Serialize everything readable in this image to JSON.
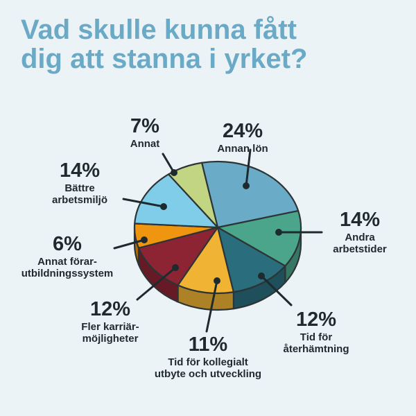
{
  "title_lines": [
    "Vad skulle kunna fått",
    "dig att stanna i yrket?"
  ],
  "chart_data": {
    "type": "pie",
    "title": "Vad skulle kunna fått dig att stanna i yrket?",
    "slices": [
      {
        "pct_label": "24%",
        "value": 24,
        "label_lines": [
          "Annan lön"
        ],
        "color": "#6aabc8"
      },
      {
        "pct_label": "14%",
        "value": 14,
        "label_lines": [
          "Andra",
          "arbetstider"
        ],
        "color": "#4aa58a"
      },
      {
        "pct_label": "12%",
        "value": 12,
        "label_lines": [
          "Tid för",
          "återhämtning"
        ],
        "color": "#2a6e7e"
      },
      {
        "pct_label": "11%",
        "value": 11,
        "label_lines": [
          "Tid för kollegialt",
          "utbyte och utveckling"
        ],
        "color": "#f0b333"
      },
      {
        "pct_label": "12%",
        "value": 12,
        "label_lines": [
          "Fler karriär-",
          "möjligheter"
        ],
        "color": "#8c2434"
      },
      {
        "pct_label": "6%",
        "value": 6,
        "label_lines": [
          "Annat förar-",
          "utbildningssystem"
        ],
        "color": "#f0950f"
      },
      {
        "pct_label": "14%",
        "value": 14,
        "label_lines": [
          "Bättre",
          "arbetsmiljö"
        ],
        "color": "#80cdea"
      },
      {
        "pct_label": "7%",
        "value": 7,
        "label_lines": [
          "Annat"
        ],
        "color": "#c2d582"
      }
    ]
  }
}
